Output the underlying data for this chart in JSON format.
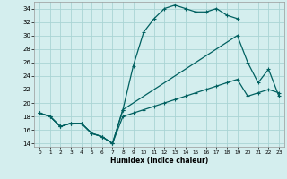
{
  "title": "",
  "xlabel": "Humidex (Indice chaleur)",
  "bg_color": "#d4eeee",
  "grid_color": "#aad4d4",
  "line_color": "#006060",
  "xlim": [
    -0.5,
    23.5
  ],
  "ylim": [
    13.5,
    35.0
  ],
  "xticks": [
    0,
    1,
    2,
    3,
    4,
    5,
    6,
    7,
    8,
    9,
    10,
    11,
    12,
    13,
    14,
    15,
    16,
    17,
    18,
    19,
    20,
    21,
    22,
    23
  ],
  "yticks": [
    14,
    16,
    18,
    20,
    22,
    24,
    26,
    28,
    30,
    32,
    34
  ],
  "line1_x": [
    0,
    1,
    2,
    3,
    4,
    5,
    6,
    7,
    8,
    9,
    10,
    11,
    12,
    13,
    14,
    15,
    16,
    17,
    18,
    19
  ],
  "line1_y": [
    18.5,
    18.0,
    16.5,
    17.0,
    17.0,
    15.5,
    15.0,
    14.0,
    19.0,
    25.5,
    30.5,
    32.5,
    34.0,
    34.5,
    34.0,
    33.5,
    33.5,
    34.0,
    33.0,
    32.5
  ],
  "line2_x": [
    0,
    1,
    2,
    3,
    4,
    5,
    6,
    7,
    8,
    19,
    20,
    21,
    22,
    23
  ],
  "line2_y": [
    18.5,
    18.0,
    16.5,
    17.0,
    17.0,
    15.5,
    15.0,
    14.0,
    19.0,
    30.0,
    26.0,
    23.0,
    25.0,
    21.0
  ],
  "line3_x": [
    0,
    1,
    2,
    3,
    4,
    5,
    6,
    7,
    8,
    9,
    10,
    11,
    12,
    13,
    14,
    15,
    16,
    17,
    18,
    19,
    20,
    21,
    22,
    23
  ],
  "line3_y": [
    18.5,
    18.0,
    16.5,
    17.0,
    17.0,
    15.5,
    15.0,
    14.0,
    18.0,
    18.5,
    19.0,
    19.5,
    20.0,
    20.5,
    21.0,
    21.5,
    22.0,
    22.5,
    23.0,
    23.5,
    21.0,
    21.5,
    22.0,
    21.5
  ]
}
